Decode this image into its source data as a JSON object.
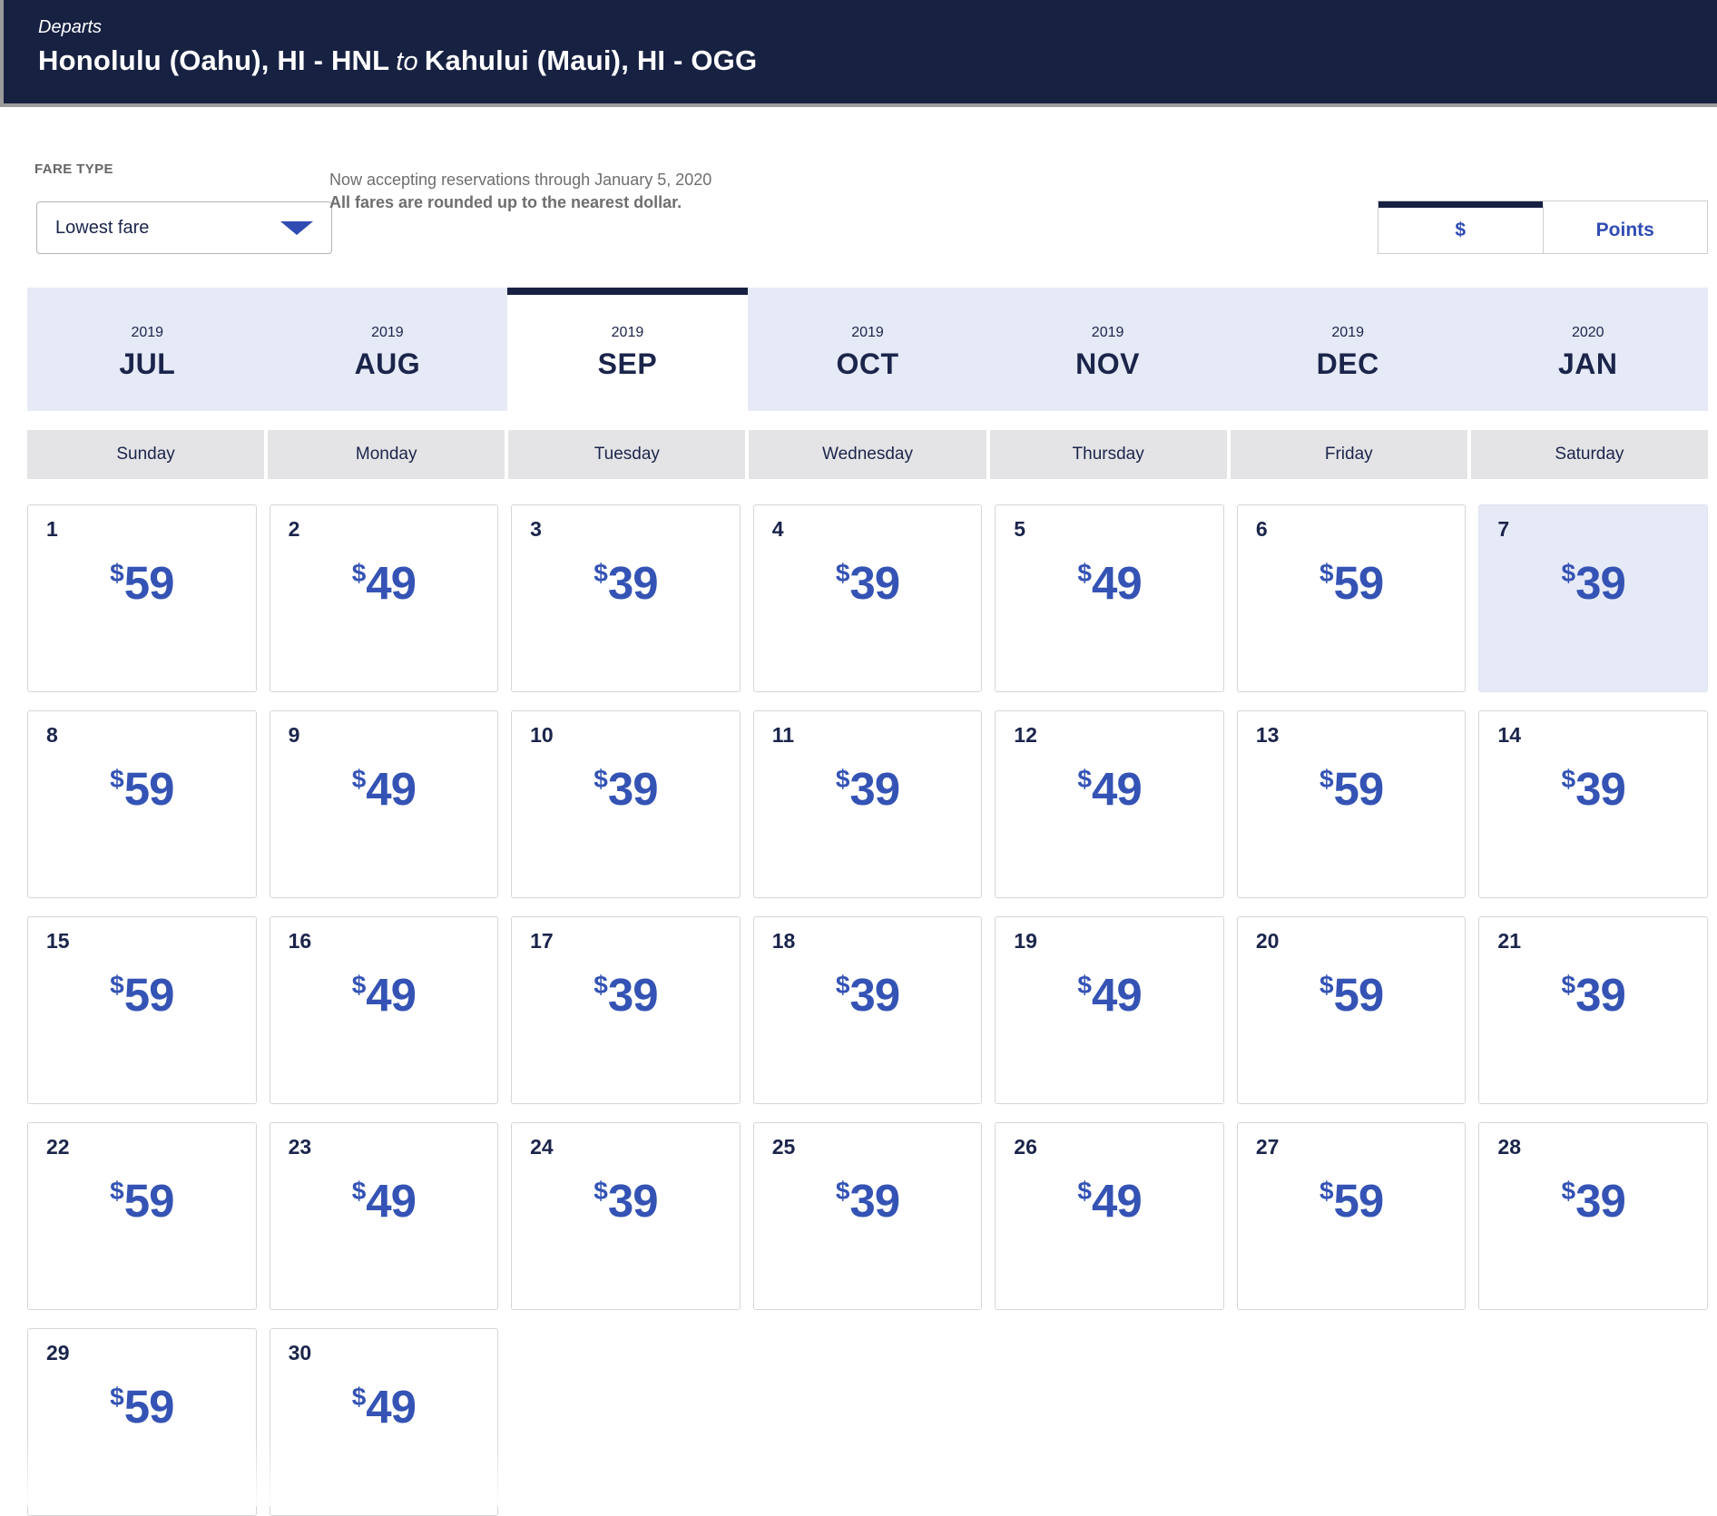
{
  "header": {
    "departs_label": "Departs",
    "origin": "Honolulu (Oahu), HI - HNL",
    "to_label": "to",
    "destination": "Kahului (Maui), HI - OGG"
  },
  "fare_type": {
    "label": "FARE TYPE",
    "selected_value": "Lowest fare"
  },
  "notice": {
    "line1": "Now accepting reservations through January 5, 2020",
    "line2": "All fares are rounded up to the nearest dollar."
  },
  "currency_toggle": {
    "dollar_label": "$",
    "points_label": "Points",
    "selected": "dollar"
  },
  "month_tabs": [
    {
      "year": "2019",
      "month": "JUL",
      "selected": false
    },
    {
      "year": "2019",
      "month": "AUG",
      "selected": false
    },
    {
      "year": "2019",
      "month": "SEP",
      "selected": true
    },
    {
      "year": "2019",
      "month": "OCT",
      "selected": false
    },
    {
      "year": "2019",
      "month": "NOV",
      "selected": false
    },
    {
      "year": "2019",
      "month": "DEC",
      "selected": false
    },
    {
      "year": "2020",
      "month": "JAN",
      "selected": false
    }
  ],
  "weekdays": [
    "Sunday",
    "Monday",
    "Tuesday",
    "Wednesday",
    "Thursday",
    "Friday",
    "Saturday"
  ],
  "calendar": {
    "currency_symbol": "$",
    "days": [
      {
        "date": "1",
        "fare": "59",
        "highlighted": false
      },
      {
        "date": "2",
        "fare": "49",
        "highlighted": false
      },
      {
        "date": "3",
        "fare": "39",
        "highlighted": false
      },
      {
        "date": "4",
        "fare": "39",
        "highlighted": false
      },
      {
        "date": "5",
        "fare": "49",
        "highlighted": false
      },
      {
        "date": "6",
        "fare": "59",
        "highlighted": false
      },
      {
        "date": "7",
        "fare": "39",
        "highlighted": true
      },
      {
        "date": "8",
        "fare": "59",
        "highlighted": false
      },
      {
        "date": "9",
        "fare": "49",
        "highlighted": false
      },
      {
        "date": "10",
        "fare": "39",
        "highlighted": false
      },
      {
        "date": "11",
        "fare": "39",
        "highlighted": false
      },
      {
        "date": "12",
        "fare": "49",
        "highlighted": false
      },
      {
        "date": "13",
        "fare": "59",
        "highlighted": false
      },
      {
        "date": "14",
        "fare": "39",
        "highlighted": false
      },
      {
        "date": "15",
        "fare": "59",
        "highlighted": false
      },
      {
        "date": "16",
        "fare": "49",
        "highlighted": false
      },
      {
        "date": "17",
        "fare": "39",
        "highlighted": false
      },
      {
        "date": "18",
        "fare": "39",
        "highlighted": false
      },
      {
        "date": "19",
        "fare": "49",
        "highlighted": false
      },
      {
        "date": "20",
        "fare": "59",
        "highlighted": false
      },
      {
        "date": "21",
        "fare": "39",
        "highlighted": false
      },
      {
        "date": "22",
        "fare": "59",
        "highlighted": false
      },
      {
        "date": "23",
        "fare": "49",
        "highlighted": false
      },
      {
        "date": "24",
        "fare": "39",
        "highlighted": false
      },
      {
        "date": "25",
        "fare": "39",
        "highlighted": false
      },
      {
        "date": "26",
        "fare": "49",
        "highlighted": false
      },
      {
        "date": "27",
        "fare": "59",
        "highlighted": false
      },
      {
        "date": "28",
        "fare": "39",
        "highlighted": false
      },
      {
        "date": "29",
        "fare": "59",
        "highlighted": false
      },
      {
        "date": "30",
        "fare": "49",
        "highlighted": false
      }
    ]
  },
  "colors": {
    "header_bg": "#172142",
    "navy_text": "#1b254b",
    "fare_blue": "#3453b4",
    "accent_blue": "#304cb2",
    "tab_bg": "#e6eaf6",
    "weekday_bg": "#e4e4e6"
  }
}
